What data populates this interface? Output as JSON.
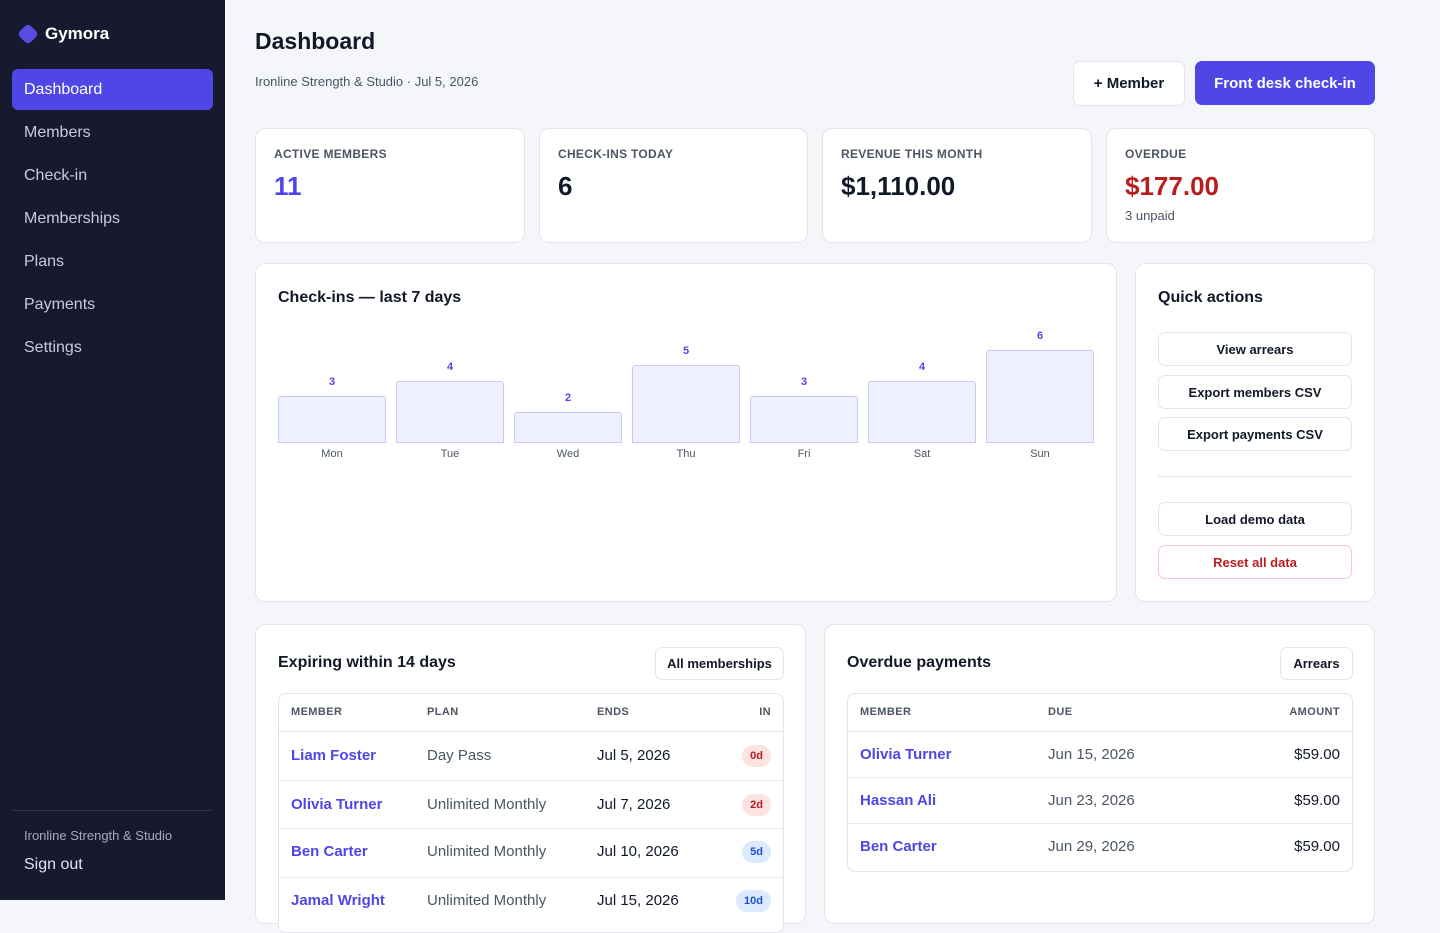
{
  "sidebar": {
    "brand": "Gymora",
    "items": [
      {
        "label": "Dashboard",
        "active": true
      },
      {
        "label": "Members"
      },
      {
        "label": "Check-in"
      },
      {
        "label": "Memberships"
      },
      {
        "label": "Plans"
      },
      {
        "label": "Payments"
      },
      {
        "label": "Settings"
      }
    ],
    "org": "Ironline Strength & Studio",
    "signout": "Sign out"
  },
  "header": {
    "title": "Dashboard",
    "subtitle": "Ironline Strength & Studio · Jul 5, 2026",
    "member_button": "+ Member",
    "checkin_button": "Front desk check-in"
  },
  "stats": [
    {
      "label": "ACTIVE MEMBERS",
      "value": "11"
    },
    {
      "label": "CHECK-INS TODAY",
      "value": "6"
    },
    {
      "label": "REVENUE THIS MONTH",
      "value": "$1,110.00"
    },
    {
      "label": "OVERDUE",
      "value": "$177.00",
      "note": "3 unpaid"
    }
  ],
  "checkins_chart": {
    "title": "Check-ins — last 7 days"
  },
  "chart_data": {
    "type": "bar",
    "title": "Check-ins — last 7 days",
    "categories": [
      "Mon",
      "Tue",
      "Wed",
      "Thu",
      "Fri",
      "Sat",
      "Sun"
    ],
    "values": [
      3,
      4,
      2,
      5,
      3,
      4,
      6
    ],
    "grid": false
  },
  "quick_actions": {
    "title": "Quick actions",
    "buttons": [
      "View arrears",
      "Export members CSV",
      "Export payments CSV"
    ],
    "data_buttons": [
      "Load demo data",
      "Reset all data"
    ]
  },
  "expiring": {
    "title": "Expiring within 14 days",
    "button": "All memberships",
    "columns": [
      "MEMBER",
      "PLAN",
      "ENDS",
      "IN"
    ],
    "rows": [
      {
        "member": "Liam Foster",
        "plan": "Day Pass",
        "ends": "Jul 5, 2026",
        "in": "0d"
      },
      {
        "member": "Olivia Turner",
        "plan": "Unlimited Monthly",
        "ends": "Jul 7, 2026",
        "in": "2d"
      },
      {
        "member": "Ben Carter",
        "plan": "Unlimited Monthly",
        "ends": "Jul 10, 2026",
        "in": "5d"
      },
      {
        "member": "Jamal Wright",
        "plan": "Unlimited Monthly",
        "ends": "Jul 15, 2026",
        "in": "10d"
      }
    ]
  },
  "overdue": {
    "title": "Overdue payments",
    "button": "Arrears",
    "columns": [
      "MEMBER",
      "DUE",
      "AMOUNT"
    ],
    "rows": [
      {
        "member": "Olivia Turner",
        "due": "Jun 15, 2026",
        "amount": "$59.00"
      },
      {
        "member": "Hassan Ali",
        "due": "Jun 23, 2026",
        "amount": "$59.00"
      },
      {
        "member": "Ben Carter",
        "due": "Jun 29, 2026",
        "amount": "$59.00"
      }
    ]
  }
}
